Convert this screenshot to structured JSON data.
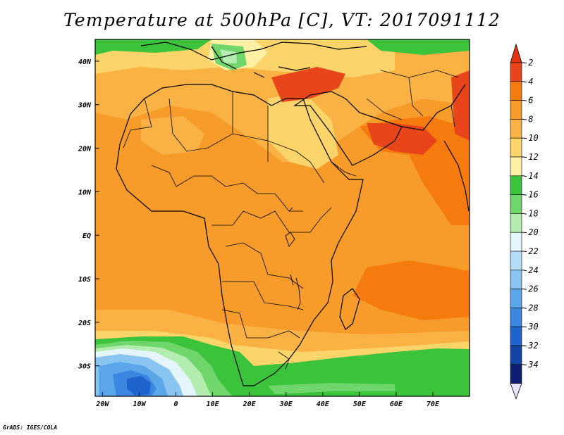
{
  "title": "Temperature at 500hPa [C], VT: 2017091112",
  "credit": "GrADS: IGES/COLA",
  "map": {
    "lon_range": [
      -22,
      80
    ],
    "lat_range": [
      -37,
      45
    ],
    "lon_ticks": [
      {
        "value": -20,
        "label": "20W"
      },
      {
        "value": -10,
        "label": "10W"
      },
      {
        "value": 0,
        "label": "0"
      },
      {
        "value": 10,
        "label": "10E"
      },
      {
        "value": 20,
        "label": "20E"
      },
      {
        "value": 30,
        "label": "30E"
      },
      {
        "value": 40,
        "label": "40E"
      },
      {
        "value": 50,
        "label": "50E"
      },
      {
        "value": 60,
        "label": "60E"
      },
      {
        "value": 70,
        "label": "70E"
      }
    ],
    "lat_ticks": [
      {
        "value": 40,
        "label": "40N"
      },
      {
        "value": 30,
        "label": "30N"
      },
      {
        "value": 20,
        "label": "20N"
      },
      {
        "value": 10,
        "label": "10N"
      },
      {
        "value": 0,
        "label": "EQ"
      },
      {
        "value": -10,
        "label": "10S"
      },
      {
        "value": -20,
        "label": "20S"
      },
      {
        "value": -30,
        "label": "30S"
      }
    ]
  },
  "colorbar": {
    "levels": [
      {
        "label": "-2",
        "color": "#e8461a"
      },
      {
        "label": "-4",
        "color": "#f57b0f"
      },
      {
        "label": "-6",
        "color": "#f79c2a"
      },
      {
        "label": "-8",
        "color": "#f9b243"
      },
      {
        "label": "-10",
        "color": "#fbd46a"
      },
      {
        "label": "-12",
        "color": "#fef0a4"
      },
      {
        "label": "-14",
        "color": "#3cc33c"
      },
      {
        "label": "-16",
        "color": "#6ed66a"
      },
      {
        "label": "-18",
        "color": "#b2ecae"
      },
      {
        "label": "-20",
        "color": "#e4f6fb"
      },
      {
        "label": "-22",
        "color": "#b4dcf6"
      },
      {
        "label": "-24",
        "color": "#8ac4f0"
      },
      {
        "label": "-26",
        "color": "#5aa6e8"
      },
      {
        "label": "-28",
        "color": "#3a86e0"
      },
      {
        "label": "-30",
        "color": "#1f64cd"
      },
      {
        "label": "-32",
        "color": "#1245a6"
      },
      {
        "label": "-34",
        "color": "#0c1f70"
      }
    ],
    "top_arrow_color": "#e23312",
    "bottom_arrow_color": "#e6e4ff"
  }
}
